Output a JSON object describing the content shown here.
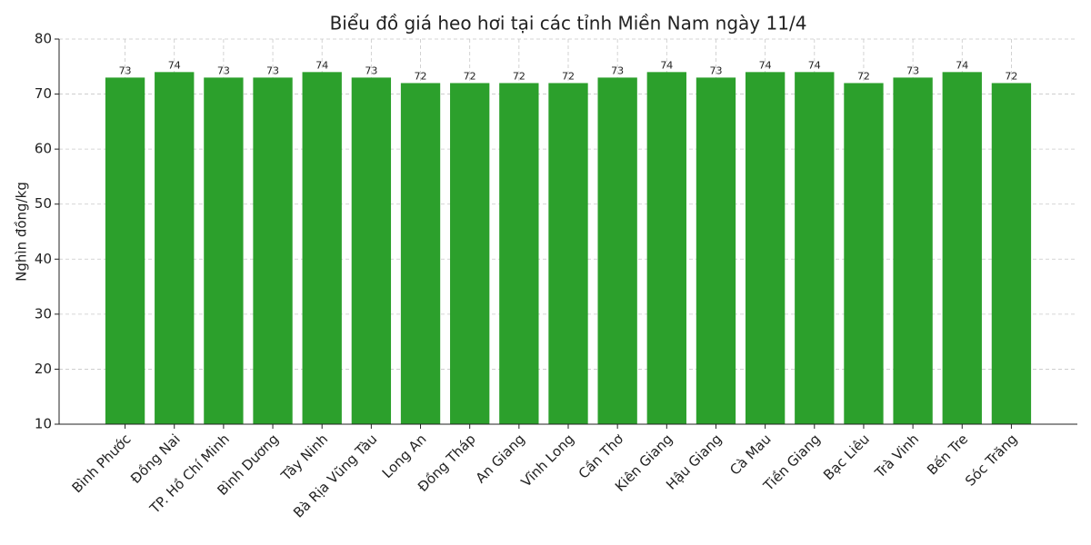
{
  "chart_data": {
    "type": "bar",
    "title": "Biểu đồ giá heo hơi tại các tỉnh Miền Nam ngày 11/4",
    "y_label": "Nghìn đồng/kg",
    "categories": [
      "Bình Phước",
      "Đồng Nai",
      "TP. Hồ Chí Minh",
      "Bình Dương",
      "Tây Ninh",
      "Bà Rịa  Vũng Tàu",
      "Long An",
      "Đồng Tháp",
      "An Giang",
      "Vĩnh Long",
      "Cần Thơ",
      "Kiên Giang",
      "Hậu Giang",
      "Cà Mau",
      "Tiền Giang",
      "Bạc Liêu",
      "Trà Vinh",
      "Bến Tre",
      "Sóc Trăng"
    ],
    "values": [
      73,
      74,
      73,
      73,
      74,
      73,
      72,
      72,
      72,
      72,
      73,
      74,
      73,
      74,
      74,
      72,
      73,
      74,
      72
    ],
    "color": "#2ca02c",
    "ylim": [
      10,
      80
    ],
    "yticks": [
      10,
      20,
      30,
      40,
      50,
      60,
      70,
      80
    ],
    "grid": true
  }
}
